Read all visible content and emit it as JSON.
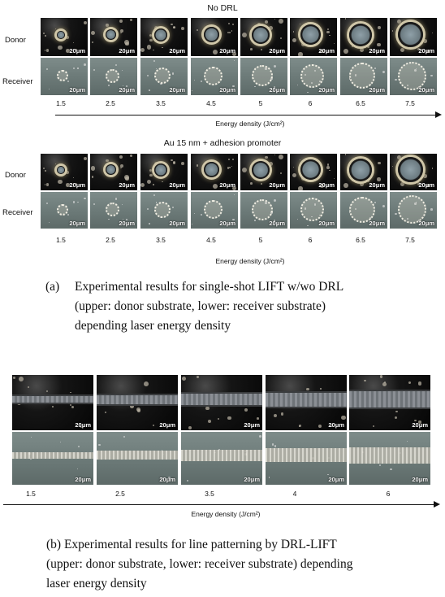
{
  "panel_a": {
    "section1_title": "No DRL",
    "section2_title": "Au 15 nm + adhesion promoter",
    "row_donor": "Donor",
    "row_receiver": "Receiver",
    "scale_label": "20μm",
    "energies_1": [
      "1.5",
      "2.5",
      "3.5",
      "4.5",
      "5",
      "6",
      "6.5",
      "7.5"
    ],
    "energies_2": [
      "1.5",
      "2.5",
      "3.5",
      "4.5",
      "5",
      "6",
      "6.5",
      "7.5"
    ],
    "axis_label": "Energy density (J/cm²)",
    "caption_tag": "(a)",
    "caption_line1": "Experimental results for single-shot LIFT w/wo DRL",
    "caption_line2": "(upper: donor substrate, lower: receiver substrate)",
    "caption_line3": "depending laser energy density"
  },
  "panel_b": {
    "scale_label": "20μm",
    "energies": [
      "1.5",
      "2.5",
      "3.5",
      "4",
      "6"
    ],
    "axis_label": "Energy density (J/cm²)",
    "caption_line1": "(b) Experimental results for line patterning by DRL-LIFT",
    "caption_line2": "(upper: donor substrate, lower: receiver substrate) depending",
    "caption_line3": "laser energy density"
  }
}
